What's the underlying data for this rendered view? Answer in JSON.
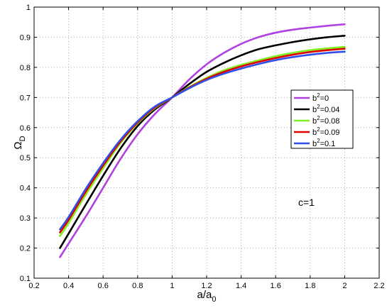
{
  "chart_data": {
    "type": "line",
    "xlabel": {
      "main": "a/a",
      "sub": "0"
    },
    "ylabel": {
      "main": "Ω",
      "sub": "D"
    },
    "xlim": [
      0.2,
      2.2
    ],
    "ylim": [
      0.1,
      1.0
    ],
    "xticks": [
      "0.2",
      "0.4",
      "0.6",
      "0.8",
      "1",
      "1.2",
      "1.4",
      "1.6",
      "1.8",
      "2",
      "2.2"
    ],
    "yticks": [
      "0.1",
      "0.2",
      "0.3",
      "0.4",
      "0.5",
      "0.6",
      "0.7",
      "0.8",
      "0.9",
      "1"
    ],
    "grid": true,
    "legend_position": "right, middle",
    "annotation": "c=1",
    "x": [
      0.35,
      0.4,
      0.5,
      0.6,
      0.7,
      0.8,
      0.9,
      1.0,
      1.1,
      1.2,
      1.3,
      1.4,
      1.5,
      1.6,
      1.7,
      1.8,
      1.9,
      2.0
    ],
    "series": [
      {
        "legend_prefix": "b",
        "legend_sup": "2",
        "legend_value": "=0",
        "color": "#b040e0",
        "values": [
          0.17,
          0.215,
          0.305,
          0.4,
          0.495,
          0.578,
          0.645,
          0.7,
          0.76,
          0.81,
          0.848,
          0.878,
          0.9,
          0.915,
          0.925,
          0.932,
          0.938,
          0.943
        ]
      },
      {
        "legend_prefix": "b",
        "legend_sup": "2",
        "legend_value": "=0.04",
        "color": "#000000",
        "values": [
          0.2,
          0.248,
          0.345,
          0.44,
          0.53,
          0.605,
          0.66,
          0.7,
          0.745,
          0.785,
          0.815,
          0.84,
          0.86,
          0.873,
          0.884,
          0.893,
          0.9,
          0.905
        ]
      },
      {
        "legend_prefix": "b",
        "legend_sup": "2",
        "legend_value": "=0.08",
        "color": "#80f020",
        "values": [
          0.24,
          0.283,
          0.378,
          0.465,
          0.548,
          0.614,
          0.665,
          0.7,
          0.735,
          0.765,
          0.79,
          0.808,
          0.823,
          0.837,
          0.848,
          0.857,
          0.863,
          0.868
        ]
      },
      {
        "legend_prefix": "b",
        "legend_sup": "2",
        "legend_value": "=0.09",
        "color": "#e00000",
        "values": [
          0.252,
          0.294,
          0.388,
          0.474,
          0.553,
          0.617,
          0.667,
          0.7,
          0.733,
          0.762,
          0.785,
          0.803,
          0.818,
          0.831,
          0.842,
          0.851,
          0.857,
          0.862
        ]
      },
      {
        "legend_prefix": "b",
        "legend_sup": "2",
        "legend_value": "=0.1",
        "color": "#3050e8",
        "values": [
          0.262,
          0.303,
          0.397,
          0.482,
          0.559,
          0.621,
          0.67,
          0.7,
          0.731,
          0.758,
          0.779,
          0.796,
          0.811,
          0.824,
          0.834,
          0.842,
          0.848,
          0.852
        ]
      }
    ]
  }
}
